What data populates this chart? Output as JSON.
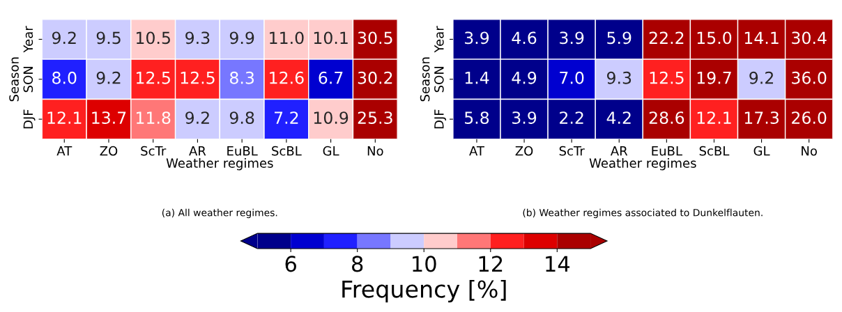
{
  "chart_data": [
    {
      "type": "heatmap",
      "xlabel": "Weather regimes",
      "ylabel": "Season",
      "categories": [
        "AT",
        "ZO",
        "ScTr",
        "AR",
        "EuBL",
        "ScBL",
        "GL",
        "No"
      ],
      "y_categories": [
        "Year",
        "SON",
        "DJF"
      ],
      "cells": [
        [
          9.2,
          9.5,
          10.5,
          9.3,
          9.9,
          11.0,
          10.1,
          30.5
        ],
        [
          8.0,
          9.2,
          12.5,
          12.5,
          8.3,
          12.6,
          6.7,
          30.2
        ],
        [
          12.1,
          13.7,
          11.8,
          9.2,
          9.8,
          7.2,
          10.9,
          25.3
        ]
      ],
      "cell_labels": [
        [
          "9.2",
          "9.5",
          "10.5",
          "9.3",
          "9.9",
          "11.0",
          "10.1",
          "30.5"
        ],
        [
          "8.0",
          "9.2",
          "12.5",
          "12.5",
          "8.3",
          "12.6",
          "6.7",
          "30.2"
        ],
        [
          "12.1",
          "13.7",
          "11.8",
          "9.2",
          "9.8",
          "7.2",
          "10.9",
          "25.3"
        ]
      ],
      "clim": [
        5,
        15
      ],
      "cticks": [
        6,
        8,
        10,
        12,
        14
      ],
      "clabel": "Frequency [%]",
      "annotations": [
        "(a) All weather regimes."
      ]
    },
    {
      "type": "heatmap",
      "xlabel": "Weather regimes",
      "ylabel": "Season",
      "categories": [
        "AT",
        "ZO",
        "ScTr",
        "AR",
        "EuBL",
        "ScBL",
        "GL",
        "No"
      ],
      "y_categories": [
        "Year",
        "SON",
        "DJF"
      ],
      "cells": [
        [
          3.9,
          4.6,
          3.9,
          5.9,
          22.2,
          15.0,
          14.1,
          30.4
        ],
        [
          1.4,
          4.9,
          7.0,
          9.3,
          12.5,
          19.7,
          9.2,
          36.0
        ],
        [
          5.8,
          3.9,
          2.2,
          4.2,
          28.6,
          12.1,
          17.3,
          26.0
        ]
      ],
      "cell_labels": [
        [
          "3.9",
          "4.6",
          "3.9",
          "5.9",
          "22.2",
          "15.0",
          "14.1",
          "30.4"
        ],
        [
          "1.4",
          "4.9",
          "7.0",
          "9.3",
          "12.5",
          "19.7",
          "9.2",
          "36.0"
        ],
        [
          "5.8",
          "3.9",
          "2.2",
          "4.2",
          "28.6",
          "12.1",
          "17.3",
          "26.0"
        ]
      ],
      "annotations": [
        "(b) Weather regimes associated to Dunkelflauten."
      ]
    }
  ]
}
